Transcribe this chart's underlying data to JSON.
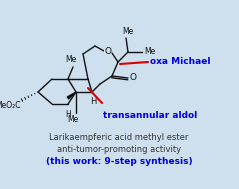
{
  "bg_color": "#cee0ee",
  "title_line1": "Larikaempferic acid methyl ester",
  "title_line2": "anti-tumor-promoting activity",
  "title_line3": "(this work: 9-step synthesis)",
  "label_oxa": "oxa Michael",
  "label_trans": "transannular aldol",
  "label_color_blue": "#0000dd",
  "label_color_red": "#dd0000",
  "text_color": "#333333",
  "title_fontsize": 6.0,
  "label_fontsize": 6.5,
  "struct_scale": 1.0
}
